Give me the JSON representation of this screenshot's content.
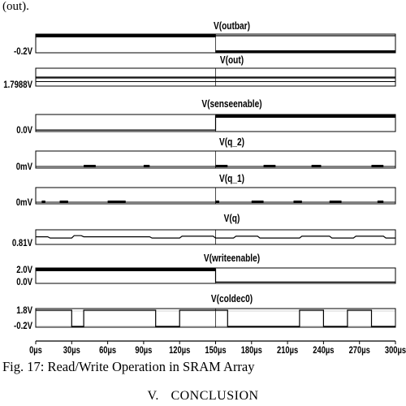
{
  "lead_text": "(out).",
  "caption": "Fig. 17: Read/Write Operation in SRAM Array",
  "section": {
    "number": "V.",
    "title": "CONCLUSION"
  },
  "chart_data": {
    "type": "line",
    "x_unit": "µs",
    "x_ticks": [
      "0µs",
      "30µs",
      "60µs",
      "90µs",
      "120µs",
      "150µs",
      "180µs",
      "210µs",
      "240µs",
      "270µs",
      "300µs"
    ],
    "xlim": [
      0,
      300
    ],
    "cursor_x": 150,
    "grid": false,
    "colors": {
      "trace": "#000000",
      "frame": "#000000",
      "background": "#ffffff"
    },
    "panels": [
      {
        "name": "V(outbar)",
        "y_ticks": [
          "-0.2V"
        ],
        "ylim": [
          -0.3,
          2.0
        ],
        "waveform": [
          [
            0,
            1.8
          ],
          [
            150,
            1.8
          ],
          [
            150,
            1.8
          ],
          [
            300,
            1.8
          ]
        ],
        "heavy_segments": [
          [
            0,
            150
          ]
        ],
        "heavy_segments_low": [
          [
            150,
            300
          ]
        ]
      },
      {
        "name": "V(out)",
        "y_ticks": [
          "1.7988V"
        ],
        "ylim": [
          1.79,
          1.81
        ],
        "waveform": [
          [
            0,
            1.8
          ],
          [
            300,
            1.8
          ]
        ],
        "double_line": true
      },
      {
        "name": "V(senseenable)",
        "y_ticks": [
          "0.0V"
        ],
        "ylim": [
          -0.2,
          2.0
        ],
        "waveform": [
          [
            0,
            0
          ],
          [
            150,
            0
          ],
          [
            150,
            1.8
          ],
          [
            300,
            1.8
          ]
        ],
        "heavy_segments": [
          [
            150,
            300
          ]
        ]
      },
      {
        "name": "V(q_2)",
        "y_ticks": [
          "0mV"
        ],
        "ylim": [
          -1,
          10
        ],
        "pulses": [
          [
            40,
            50
          ],
          [
            90,
            95
          ],
          [
            150,
            160
          ],
          [
            190,
            200
          ],
          [
            230,
            238
          ],
          [
            280,
            290
          ]
        ]
      },
      {
        "name": "V(q_1)",
        "y_ticks": [
          "0mV"
        ],
        "ylim": [
          -1,
          10
        ],
        "pulses": [
          [
            5,
            8
          ],
          [
            20,
            27
          ],
          [
            60,
            75
          ],
          [
            150,
            153
          ],
          [
            180,
            190
          ],
          [
            215,
            222
          ],
          [
            245,
            255
          ],
          [
            285,
            290
          ]
        ]
      },
      {
        "name": "V(q)",
        "y_ticks": [
          "0.81V"
        ],
        "ylim": [
          0.75,
          1.0
        ],
        "waveform": [
          [
            0,
            0.88
          ],
          [
            10,
            0.88
          ],
          [
            12,
            0.86
          ],
          [
            30,
            0.86
          ],
          [
            32,
            0.9
          ],
          [
            38,
            0.9
          ],
          [
            40,
            0.88
          ],
          [
            95,
            0.88
          ],
          [
            97,
            0.86
          ],
          [
            120,
            0.86
          ],
          [
            122,
            0.89
          ],
          [
            148,
            0.89
          ],
          [
            150,
            0.86
          ],
          [
            165,
            0.86
          ],
          [
            167,
            0.89
          ],
          [
            185,
            0.89
          ],
          [
            187,
            0.86
          ],
          [
            220,
            0.86
          ],
          [
            222,
            0.89
          ],
          [
            245,
            0.89
          ],
          [
            247,
            0.86
          ],
          [
            265,
            0.86
          ],
          [
            267,
            0.89
          ],
          [
            290,
            0.89
          ],
          [
            292,
            0.86
          ],
          [
            300,
            0.86
          ]
        ]
      },
      {
        "name": "V(writeenable)",
        "y_ticks": [
          "2.0V",
          "0.0V"
        ],
        "ylim": [
          -0.2,
          2.2
        ],
        "waveform": [
          [
            0,
            2.0
          ],
          [
            150,
            2.0
          ],
          [
            150,
            0
          ],
          [
            300,
            0
          ]
        ],
        "heavy_segments": [
          [
            0,
            150
          ]
        ]
      },
      {
        "name": "V(coldec0)",
        "y_ticks": [
          "1.8V",
          "-0.2V"
        ],
        "ylim": [
          -0.3,
          2.0
        ],
        "waveform": [
          [
            0,
            1.8
          ],
          [
            30,
            1.8
          ],
          [
            30,
            -0.2
          ],
          [
            40,
            -0.2
          ],
          [
            40,
            1.8
          ],
          [
            100,
            1.8
          ],
          [
            100,
            -0.2
          ],
          [
            120,
            -0.2
          ],
          [
            120,
            1.8
          ],
          [
            160,
            1.8
          ],
          [
            160,
            -0.2
          ],
          [
            220,
            -0.2
          ],
          [
            220,
            1.8
          ],
          [
            240,
            1.8
          ],
          [
            240,
            -0.2
          ],
          [
            260,
            -0.2
          ],
          [
            260,
            1.8
          ],
          [
            280,
            1.8
          ],
          [
            280,
            -0.2
          ],
          [
            300,
            -0.2
          ]
        ],
        "inner_lines": [
          1.7,
          -0.15
        ]
      }
    ]
  }
}
